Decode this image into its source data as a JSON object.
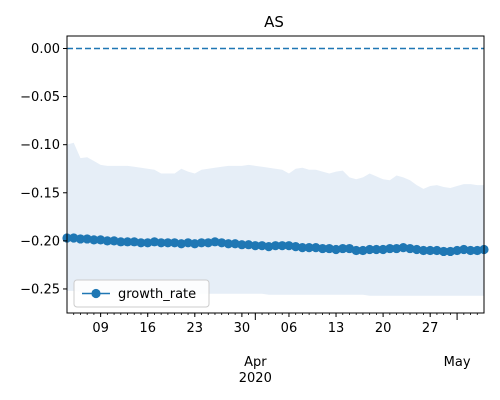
{
  "chart_data": {
    "type": "line",
    "title": "AS",
    "xlabel": "",
    "ylabel": "",
    "ylim": [
      -0.275,
      0.013
    ],
    "xlim": [
      "2020-03-04",
      "2020-05-05"
    ],
    "y_ticks": [
      {
        "value": 0.0,
        "label": "0.00"
      },
      {
        "value": -0.05,
        "label": "−0.05"
      },
      {
        "value": -0.1,
        "label": "−0.10"
      },
      {
        "value": -0.15,
        "label": "−0.15"
      },
      {
        "value": -0.2,
        "label": "−0.20"
      },
      {
        "value": -0.25,
        "label": "−0.25"
      }
    ],
    "x_major_ticks": [
      {
        "date": "2020-03-09",
        "label": "09"
      },
      {
        "date": "2020-03-16",
        "label": "16"
      },
      {
        "date": "2020-03-23",
        "label": "23"
      },
      {
        "date": "2020-03-30",
        "label": "30"
      },
      {
        "date": "2020-04-06",
        "label": "06"
      },
      {
        "date": "2020-04-13",
        "label": "13"
      },
      {
        "date": "2020-04-20",
        "label": "20"
      },
      {
        "date": "2020-04-27",
        "label": "27"
      }
    ],
    "x_month_labels": [
      {
        "date": "2020-04-01",
        "label": "Apr",
        "sublabel": "2020"
      },
      {
        "date": "2020-05-01",
        "label": "May",
        "sublabel": ""
      }
    ],
    "reference_line": {
      "y": 0.0,
      "style": "dashed",
      "color": "#1f77b4"
    },
    "legend": {
      "position": "lower-left",
      "entries": [
        "growth_rate"
      ]
    },
    "series": [
      {
        "name": "growth_rate",
        "color": "#1f77b4",
        "marker": "circle",
        "start_date": "2020-03-04",
        "values": [
          -0.197,
          -0.197,
          -0.198,
          -0.198,
          -0.199,
          -0.199,
          -0.2,
          -0.2,
          -0.201,
          -0.201,
          -0.201,
          -0.202,
          -0.202,
          -0.201,
          -0.202,
          -0.202,
          -0.202,
          -0.203,
          -0.202,
          -0.203,
          -0.202,
          -0.202,
          -0.201,
          -0.202,
          -0.203,
          -0.203,
          -0.204,
          -0.204,
          -0.205,
          -0.205,
          -0.206,
          -0.205,
          -0.205,
          -0.205,
          -0.206,
          -0.207,
          -0.207,
          -0.207,
          -0.208,
          -0.208,
          -0.209,
          -0.208,
          -0.208,
          -0.21,
          -0.21,
          -0.209,
          -0.209,
          -0.209,
          -0.208,
          -0.208,
          -0.207,
          -0.208,
          -0.209,
          -0.21,
          -0.21,
          -0.21,
          -0.211,
          -0.211,
          -0.21,
          -0.209,
          -0.21,
          -0.21,
          -0.209
        ]
      }
    ],
    "band": {
      "color": "#e6eef7",
      "upper": [
        -0.1,
        -0.098,
        -0.114,
        -0.113,
        -0.117,
        -0.121,
        -0.122,
        -0.122,
        -0.122,
        -0.122,
        -0.123,
        -0.124,
        -0.125,
        -0.126,
        -0.13,
        -0.13,
        -0.13,
        -0.125,
        -0.128,
        -0.13,
        -0.126,
        -0.125,
        -0.124,
        -0.123,
        -0.122,
        -0.122,
        -0.122,
        -0.121,
        -0.122,
        -0.123,
        -0.124,
        -0.125,
        -0.126,
        -0.13,
        -0.125,
        -0.124,
        -0.126,
        -0.126,
        -0.128,
        -0.13,
        -0.128,
        -0.127,
        -0.134,
        -0.136,
        -0.134,
        -0.13,
        -0.133,
        -0.136,
        -0.137,
        -0.132,
        -0.134,
        -0.137,
        -0.142,
        -0.146,
        -0.143,
        -0.142,
        -0.144,
        -0.145,
        -0.143,
        -0.141,
        -0.141,
        -0.142,
        -0.142
      ],
      "lower": [
        -0.252,
        -0.252,
        -0.253,
        -0.253,
        -0.253,
        -0.253,
        -0.254,
        -0.254,
        -0.254,
        -0.254,
        -0.254,
        -0.254,
        -0.255,
        -0.255,
        -0.255,
        -0.255,
        -0.255,
        -0.255,
        -0.255,
        -0.255,
        -0.255,
        -0.255,
        -0.255,
        -0.255,
        -0.255,
        -0.255,
        -0.255,
        -0.255,
        -0.255,
        -0.255,
        -0.256,
        -0.256,
        -0.256,
        -0.256,
        -0.256,
        -0.256,
        -0.256,
        -0.256,
        -0.256,
        -0.256,
        -0.256,
        -0.256,
        -0.256,
        -0.256,
        -0.256,
        -0.257,
        -0.257,
        -0.257,
        -0.257,
        -0.257,
        -0.257,
        -0.257,
        -0.257,
        -0.257,
        -0.257,
        -0.257,
        -0.257,
        -0.257,
        -0.257,
        -0.257,
        -0.257,
        -0.257,
        -0.257
      ]
    }
  }
}
